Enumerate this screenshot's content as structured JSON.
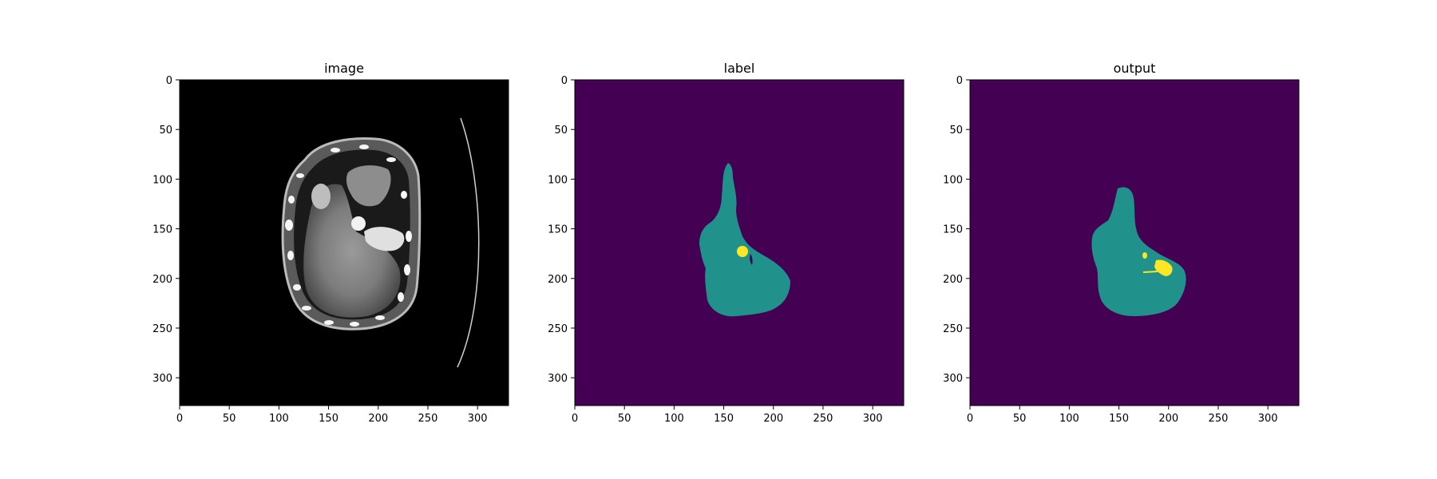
{
  "figure": {
    "panels": [
      {
        "id": "image",
        "title": "image",
        "background": "#000000",
        "x_ticks": [
          "0",
          "50",
          "100",
          "150",
          "200",
          "250",
          "300"
        ],
        "y_ticks": [
          "0",
          "50",
          "100",
          "150",
          "200",
          "250",
          "300"
        ]
      },
      {
        "id": "label",
        "title": "label",
        "background": "#440154",
        "x_ticks": [
          "0",
          "50",
          "100",
          "150",
          "200",
          "250",
          "300"
        ],
        "y_ticks": [
          "0",
          "50",
          "100",
          "150",
          "200",
          "250",
          "300"
        ]
      },
      {
        "id": "output",
        "title": "output",
        "background": "#440154",
        "x_ticks": [
          "0",
          "50",
          "100",
          "150",
          "200",
          "250",
          "300"
        ],
        "y_ticks": [
          "0",
          "50",
          "100",
          "150",
          "200",
          "250",
          "300"
        ]
      }
    ],
    "colors": {
      "background_class": "#440154",
      "organ_class": "#21918c",
      "lesion_class": "#fde725",
      "ct_background": "#000000"
    }
  }
}
